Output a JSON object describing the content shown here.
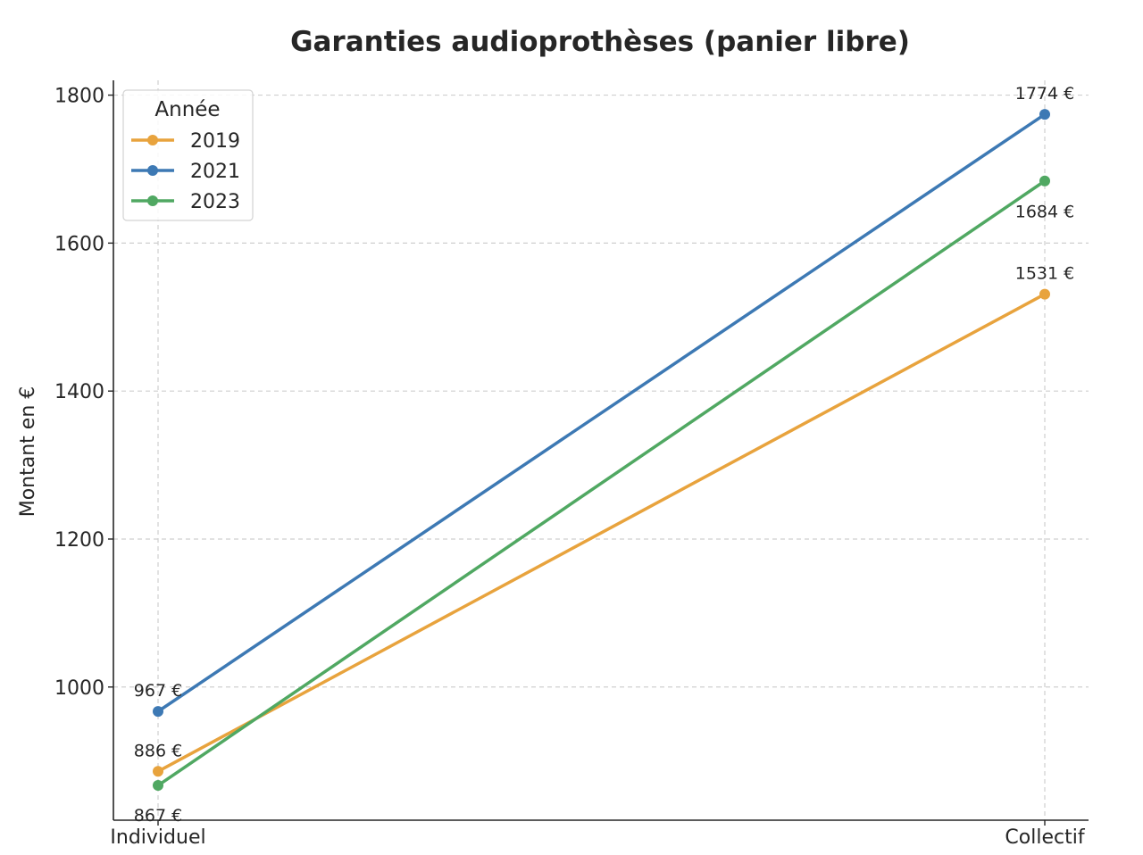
{
  "chart_data": {
    "type": "line",
    "title": "Garanties audioprothèses (panier libre)",
    "xlabel": "",
    "ylabel": "Montant en €",
    "categories": [
      "Individuel",
      "Collectif"
    ],
    "ylim": [
      820,
      1820
    ],
    "yticks": [
      1000,
      1200,
      1400,
      1600,
      1800
    ],
    "grid": true,
    "legend_title": "Année",
    "legend_position": "top-left",
    "series": [
      {
        "name": "2019",
        "color": "#e8a33d",
        "values": [
          886,
          1531
        ],
        "labels": [
          "886 €",
          "1531 €"
        ]
      },
      {
        "name": "2021",
        "color": "#3d79b4",
        "values": [
          967,
          1774
        ],
        "labels": [
          "967 €",
          "1774 €"
        ]
      },
      {
        "name": "2023",
        "color": "#50a862",
        "values": [
          867,
          1684
        ],
        "labels": [
          "867 €",
          "1684 €"
        ]
      }
    ]
  }
}
